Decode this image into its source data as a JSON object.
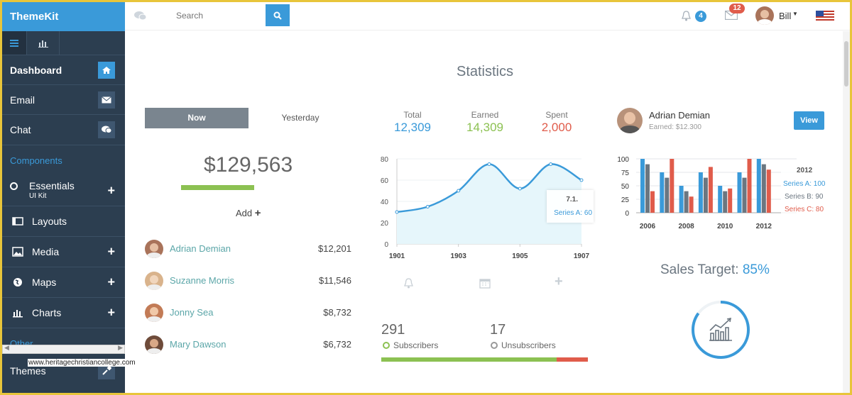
{
  "brand": "ThemeKit",
  "search": {
    "placeholder": "Search"
  },
  "header": {
    "notif_count": "4",
    "mail_count": "12",
    "user": "Bill"
  },
  "sidebar": {
    "items": [
      {
        "label": "Dashboard",
        "icon": "home-icon"
      },
      {
        "label": "Email",
        "icon": "envelope-icon"
      },
      {
        "label": "Chat",
        "icon": "comment-icon"
      }
    ],
    "section": "Components",
    "essentials": "Essentials",
    "essentials_sub": "UI Kit",
    "sub": [
      {
        "label": "Layouts"
      },
      {
        "label": "Media"
      },
      {
        "label": "Maps"
      },
      {
        "label": "Charts"
      }
    ],
    "other": "Other",
    "themes": "Themes",
    "watermark": "www.heritagechristiancollege.com"
  },
  "page_title": "Statistics",
  "balance": {
    "tab_now": "Now",
    "tab_yesterday": "Yesterday",
    "amount": "$129,563",
    "add": "Add"
  },
  "people": [
    {
      "name": "Adrian Demian",
      "amount": "$12,201"
    },
    {
      "name": "Suzanne Morris",
      "amount": "$11,546"
    },
    {
      "name": "Jonny Sea",
      "amount": "$8,732"
    },
    {
      "name": "Mary Dawson",
      "amount": "$6,732"
    }
  ],
  "stats": [
    {
      "label": "Total",
      "value": "12,309",
      "color": "#3a9ad9"
    },
    {
      "label": "Earned",
      "value": "14,309",
      "color": "#8cc152"
    },
    {
      "label": "Spent",
      "value": "2,000",
      "color": "#e05c4b"
    }
  ],
  "chart_data": [
    {
      "type": "area",
      "x": [
        1901,
        1902,
        1903,
        1904,
        1905,
        1906,
        1907
      ],
      "y": [
        30,
        35,
        50,
        75,
        52,
        75,
        60
      ],
      "xticks": [
        "1901",
        "1903",
        "1905",
        "1907"
      ],
      "yticks": [
        "0",
        "20",
        "40",
        "60",
        "80"
      ],
      "ylim": [
        0,
        80
      ],
      "tooltip": {
        "title": "7.1.",
        "text": "Series A: 60"
      }
    },
    {
      "type": "bar",
      "categories": [
        "2006",
        "2007",
        "2008",
        "2009",
        "2010",
        "2011",
        "2012"
      ],
      "xticks": [
        "2006",
        "2008",
        "2010",
        "2012"
      ],
      "yticks": [
        "0",
        "25",
        "50",
        "75",
        "100"
      ],
      "ylim": [
        0,
        100
      ],
      "series": [
        {
          "name": "Series A",
          "color": "#3a9ad9",
          "values": [
            100,
            75,
            50,
            75,
            50,
            75,
            100
          ]
        },
        {
          "name": "Series B",
          "color": "#6b7680",
          "values": [
            90,
            65,
            40,
            65,
            40,
            65,
            90
          ]
        },
        {
          "name": "Series C",
          "color": "#e05c4b",
          "values": [
            40,
            100,
            30,
            85,
            45,
            100,
            80
          ]
        }
      ],
      "tooltip": {
        "title": "2012",
        "lines": [
          "Series A: 100",
          "Series B: 90",
          "Series C: 80"
        ]
      }
    }
  ],
  "profile": {
    "name": "Adrian Demian",
    "earned": "Earned: $12.300",
    "button": "View"
  },
  "sales": {
    "label": "Sales Target:",
    "value": "85%",
    "percent": 85
  },
  "subs": {
    "count": "291",
    "label": "Subscribers",
    "ucount": "17",
    "ulabel": "Unsubscribers",
    "ratio": 0.85
  }
}
